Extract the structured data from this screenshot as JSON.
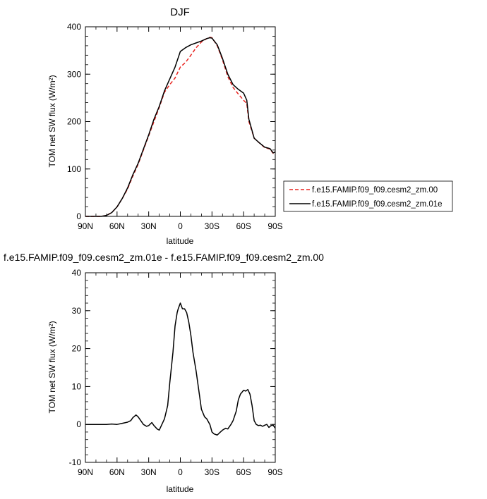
{
  "chart_data": [
    {
      "type": "line",
      "title": "DJF",
      "xlabel": "latitude",
      "ylabel": "TOM net SW flux (W/m²)",
      "xlim": [
        90,
        -90
      ],
      "ylim": [
        0,
        400
      ],
      "xticks": [
        {
          "value": 90,
          "label": "90N"
        },
        {
          "value": 60,
          "label": "60N"
        },
        {
          "value": 30,
          "label": "30N"
        },
        {
          "value": 0,
          "label": "0"
        },
        {
          "value": -30,
          "label": "30S"
        },
        {
          "value": -60,
          "label": "60S"
        },
        {
          "value": -90,
          "label": "90S"
        }
      ],
      "yticks": [
        {
          "value": 0,
          "label": "0"
        },
        {
          "value": 100,
          "label": "100"
        },
        {
          "value": 200,
          "label": "200"
        },
        {
          "value": 300,
          "label": "300"
        },
        {
          "value": 400,
          "label": "400"
        }
      ],
      "legend_position": "right",
      "series": [
        {
          "name": "f.e15.FAMIP.f09_f09.cesm2_zm.00",
          "color": "#e8231f",
          "dash": "dashed",
          "x": [
            90,
            85,
            80,
            75,
            70,
            65,
            60,
            55,
            50,
            45,
            40,
            35,
            30,
            25,
            20,
            15,
            10,
            5,
            0,
            -5,
            -10,
            -15,
            -20,
            -25,
            -28,
            -30,
            -35,
            -40,
            -45,
            -50,
            -55,
            -60,
            -63,
            -65,
            -70,
            -75,
            -80,
            -85,
            -88,
            -90
          ],
          "y": [
            0,
            0,
            0,
            0,
            2,
            8,
            20,
            38,
            58,
            85,
            110,
            140,
            170,
            200,
            230,
            262,
            278,
            292,
            315,
            325,
            340,
            356,
            368,
            375,
            378,
            377,
            360,
            330,
            295,
            272,
            258,
            245,
            238,
            200,
            165,
            155,
            145,
            142,
            133,
            135
          ]
        },
        {
          "name": "f.e15.FAMIP.f09_f09.cesm2_zm.01e",
          "color": "#000000",
          "dash": "solid",
          "x": [
            90,
            85,
            80,
            75,
            70,
            65,
            60,
            55,
            50,
            45,
            40,
            35,
            30,
            25,
            20,
            15,
            10,
            5,
            0,
            -5,
            -10,
            -15,
            -20,
            -25,
            -28,
            -30,
            -35,
            -40,
            -45,
            -50,
            -55,
            -60,
            -63,
            -65,
            -70,
            -75,
            -80,
            -85,
            -88,
            -90
          ],
          "y": [
            0,
            0,
            0,
            0,
            2,
            8,
            20,
            38,
            60,
            88,
            112,
            142,
            172,
            205,
            232,
            265,
            290,
            315,
            348,
            356,
            362,
            366,
            370,
            375,
            377,
            376,
            362,
            333,
            300,
            278,
            268,
            260,
            245,
            205,
            165,
            155,
            146,
            143,
            134,
            136
          ]
        }
      ]
    },
    {
      "type": "line",
      "title": "f.e15.FAMIP.f09_f09.cesm2_zm.01e - f.e15.FAMIP.f09_f09.cesm2_zm.00",
      "xlabel": "latitude",
      "ylabel": "TOM net SW flux (W/m²)",
      "xlim": [
        90,
        -90
      ],
      "ylim": [
        -10,
        40
      ],
      "xticks": [
        {
          "value": 90,
          "label": "90N"
        },
        {
          "value": 60,
          "label": "60N"
        },
        {
          "value": 30,
          "label": "30N"
        },
        {
          "value": 0,
          "label": "0"
        },
        {
          "value": -30,
          "label": "30S"
        },
        {
          "value": -60,
          "label": "60S"
        },
        {
          "value": -90,
          "label": "90S"
        }
      ],
      "yticks": [
        {
          "value": -10,
          "label": "-10"
        },
        {
          "value": 0,
          "label": "0"
        },
        {
          "value": 10,
          "label": "10"
        },
        {
          "value": 20,
          "label": "20"
        },
        {
          "value": 30,
          "label": "30"
        },
        {
          "value": 40,
          "label": "40"
        }
      ],
      "series": [
        {
          "color": "#000000",
          "dash": "solid",
          "x": [
            90,
            80,
            70,
            65,
            60,
            55,
            50,
            47,
            45,
            42,
            40,
            35,
            32,
            30,
            27,
            25,
            22,
            20,
            15,
            12,
            10,
            7,
            5,
            3,
            2,
            0,
            -2,
            -4,
            -6,
            -8,
            -10,
            -12,
            -15,
            -18,
            -20,
            -23,
            -25,
            -28,
            -30,
            -32,
            -35,
            -38,
            -40,
            -43,
            -45,
            -48,
            -50,
            -53,
            -55,
            -57,
            -60,
            -62,
            -64,
            -66,
            -68,
            -70,
            -72,
            -74,
            -76,
            -78,
            -80,
            -82,
            -84,
            -86,
            -88,
            -90
          ],
          "y": [
            0,
            0,
            0,
            0.1,
            0,
            0.3,
            0.6,
            1,
            1.8,
            2.5,
            2,
            0,
            -0.5,
            -0.3,
            0.5,
            -0.3,
            -1.2,
            -1.5,
            1.5,
            5,
            11,
            19,
            26,
            29.5,
            30.5,
            32,
            30.5,
            30.5,
            29.5,
            27,
            23.5,
            19,
            14,
            8,
            4,
            2,
            1.5,
            0,
            -2,
            -2.5,
            -2.8,
            -2,
            -1.5,
            -1,
            -1.2,
            0,
            1,
            3.5,
            6.5,
            8,
            9,
            8.8,
            9.2,
            8,
            5,
            1,
            0,
            -0.3,
            -0.2,
            -0.5,
            -0.2,
            0,
            -0.8,
            -0.3,
            -0.2,
            -1
          ]
        }
      ]
    }
  ]
}
